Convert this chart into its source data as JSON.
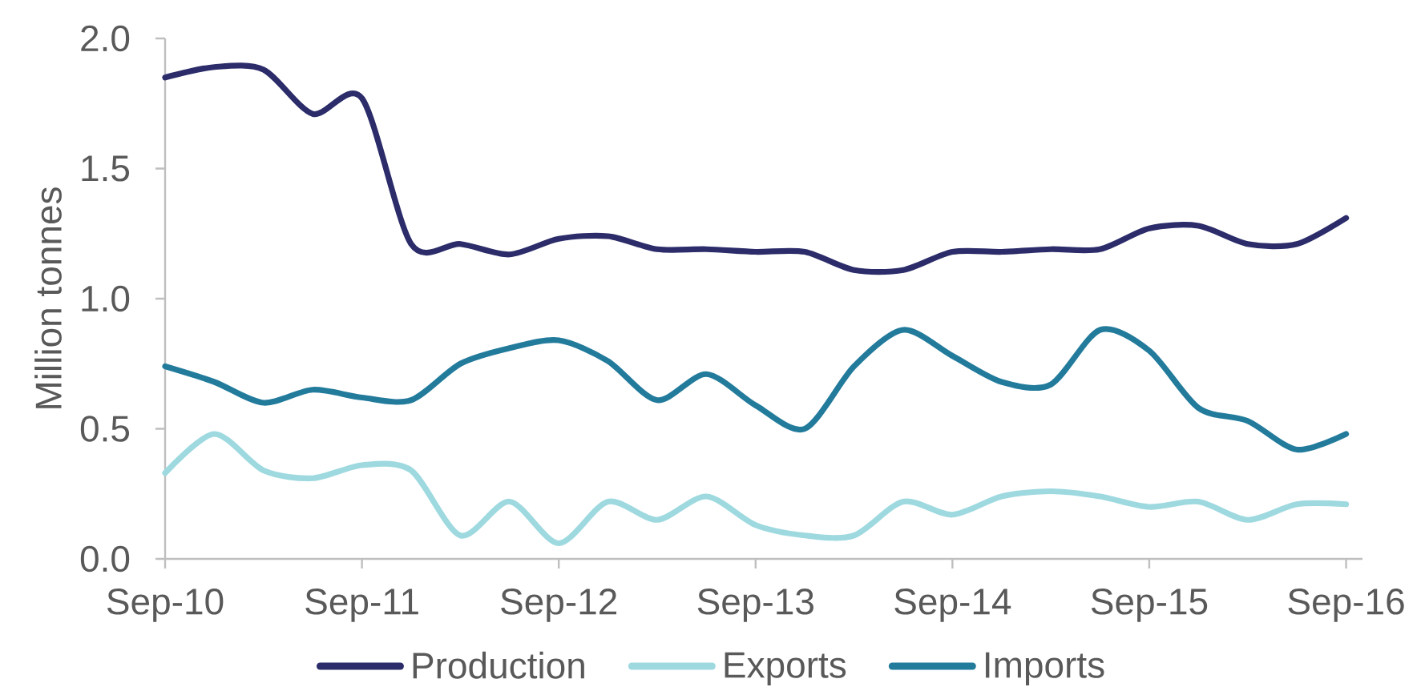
{
  "chart_data": {
    "type": "line",
    "ylabel": "Million tonnes",
    "x": [
      "2010-09",
      "2010-12",
      "2011-03",
      "2011-06",
      "2011-09",
      "2011-12",
      "2012-03",
      "2012-06",
      "2012-09",
      "2012-12",
      "2013-03",
      "2013-06",
      "2013-09",
      "2013-12",
      "2014-03",
      "2014-06",
      "2014-09",
      "2014-12",
      "2015-03",
      "2015-06",
      "2015-09",
      "2015-12",
      "2016-03",
      "2016-06",
      "2016-09"
    ],
    "series": [
      {
        "name": "Production",
        "color": "#2b2c69",
        "values": [
          1.85,
          1.89,
          1.88,
          1.71,
          1.77,
          1.21,
          1.21,
          1.17,
          1.23,
          1.24,
          1.19,
          1.19,
          1.18,
          1.18,
          1.11,
          1.11,
          1.18,
          1.18,
          1.19,
          1.19,
          1.27,
          1.28,
          1.21,
          1.21,
          1.31
        ]
      },
      {
        "name": "Exports",
        "color": "#9ed9e0",
        "values": [
          0.33,
          0.48,
          0.34,
          0.31,
          0.36,
          0.34,
          0.09,
          0.22,
          0.06,
          0.22,
          0.15,
          0.24,
          0.13,
          0.09,
          0.09,
          0.22,
          0.17,
          0.24,
          0.26,
          0.24,
          0.2,
          0.22,
          0.15,
          0.21,
          0.21
        ]
      },
      {
        "name": "Imports",
        "color": "#237b9c",
        "values": [
          0.74,
          0.68,
          0.6,
          0.65,
          0.62,
          0.61,
          0.75,
          0.81,
          0.84,
          0.76,
          0.61,
          0.71,
          0.59,
          0.5,
          0.74,
          0.88,
          0.78,
          0.68,
          0.67,
          0.88,
          0.8,
          0.58,
          0.53,
          0.42,
          0.48
        ]
      }
    ],
    "xlim": [
      "2010-09",
      "2016-10"
    ],
    "xticks": [
      {
        "value": "2010-09",
        "label": "Sep-10"
      },
      {
        "value": "2011-09",
        "label": "Sep-11"
      },
      {
        "value": "2012-09",
        "label": "Sep-12"
      },
      {
        "value": "2013-09",
        "label": "Sep-13"
      },
      {
        "value": "2014-09",
        "label": "Sep-14"
      },
      {
        "value": "2015-09",
        "label": "Sep-15"
      },
      {
        "value": "2016-09",
        "label": "Sep-16"
      }
    ],
    "ylim": [
      0,
      2
    ],
    "yticks": [
      {
        "value": 0,
        "label": "0.0"
      },
      {
        "value": 0.5,
        "label": "0.5"
      },
      {
        "value": 1,
        "label": "1.0"
      },
      {
        "value": 1.5,
        "label": "1.5"
      },
      {
        "value": 2,
        "label": "2.0"
      }
    ],
    "legend": "bottom",
    "marker": "none",
    "line_style": "solid"
  }
}
